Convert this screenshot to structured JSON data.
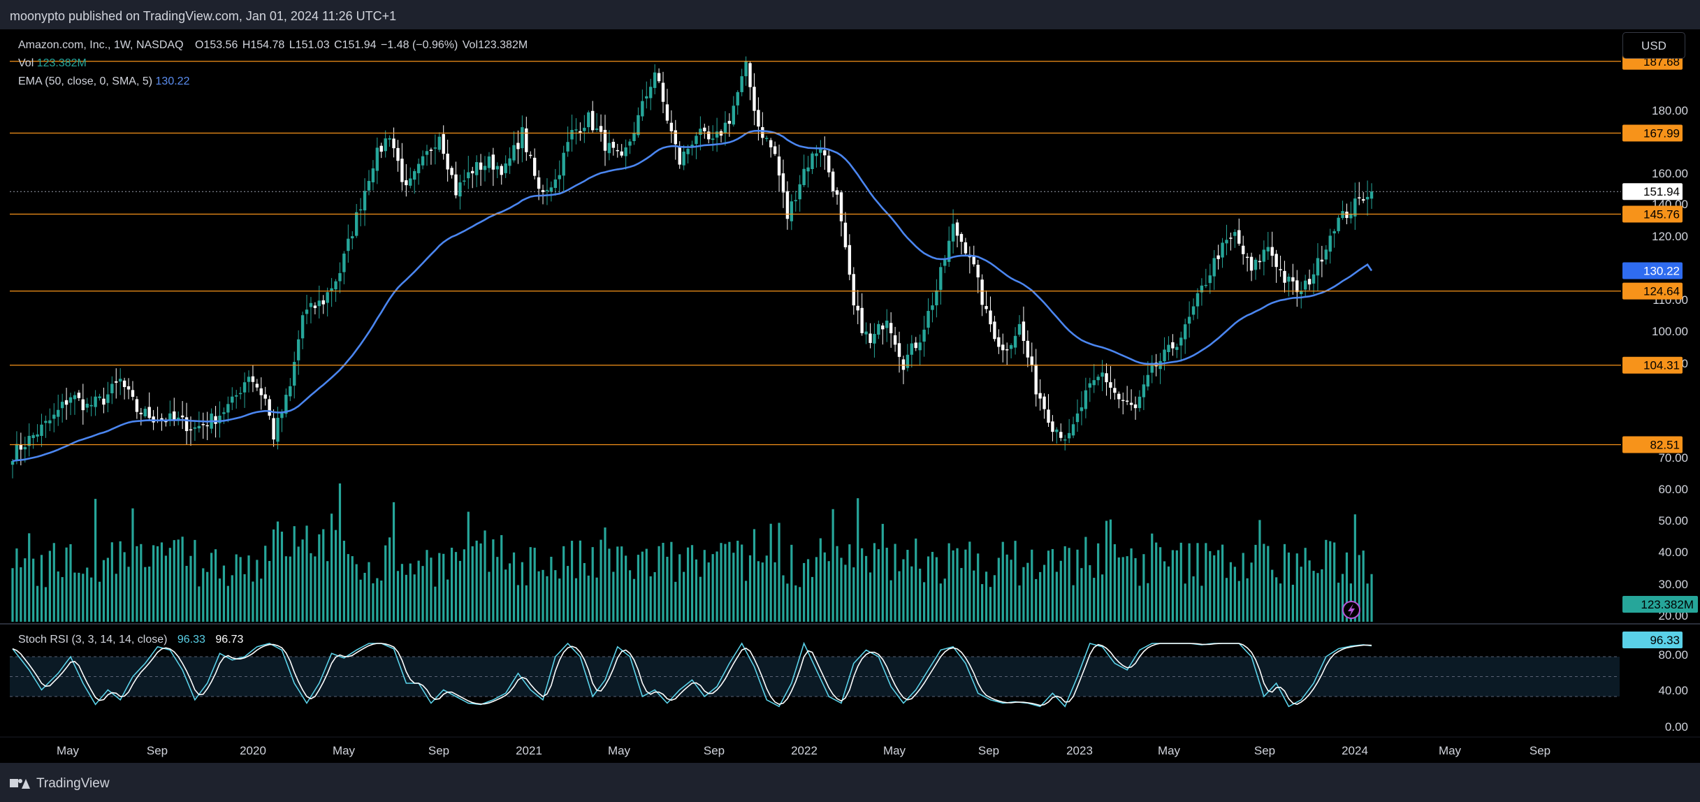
{
  "header": {
    "published": "moonypto published on TradingView.com, Jan 01, 2024 11:26 UTC+1"
  },
  "footer": {
    "brand": "TradingView"
  },
  "toolbar": {
    "currency": "USD"
  },
  "legend": {
    "symbol": "Amazon.com, Inc., 1W, NASDAQ",
    "open": "O153.56",
    "high": "H154.78",
    "low": "L151.03",
    "close": "C151.94",
    "change": "−1.48 (−0.96%)",
    "volume": "Vol123.382M",
    "vol_label": "Vol",
    "vol_value": "123.382M",
    "ema_label": "EMA (50, close, 0, SMA, 5)",
    "ema_value": "130.22"
  },
  "rsi_legend": {
    "label": "Stoch RSI (3, 3, 14, 14, close)",
    "k": "96.33",
    "d": "96.73"
  },
  "colors": {
    "up": "#26a69a",
    "down": "#ffffff",
    "ema": "#4b86f0",
    "level": "#f7931a",
    "volume": "#26a69a",
    "rsi_k": "#5ad1e8",
    "rsi_d": "#ffffff",
    "text": "#d1d4dc"
  },
  "chart_data": {
    "type": "candlestick",
    "symbol": "AMZN",
    "interval": "1W",
    "x_range": [
      "2019-03",
      "2024-10"
    ],
    "y_range": [
      78,
      193
    ],
    "price_ticks": [
      "180.00",
      "160.00",
      "140.00",
      "120.00",
      "110.00",
      "100.00",
      "90.00",
      "70.00",
      "60.00",
      "50.00",
      "40.00",
      "30.00",
      "20.00"
    ],
    "x_ticks": [
      "May",
      "Sep",
      "2020",
      "May",
      "Sep",
      "2021",
      "May",
      "Sep",
      "2022",
      "May",
      "Sep",
      "2023",
      "May",
      "Sep",
      "2024",
      "May",
      "Sep"
    ],
    "levels": [
      "187.68",
      "167.99",
      "145.76",
      "124.64",
      "104.31",
      "82.51"
    ],
    "last_price": "151.94",
    "ema_last": "130.22",
    "volume_last": "123.382M",
    "rsi_ticks": [
      "80.00",
      "40.00",
      "0.00"
    ],
    "rsi_k_last": "96.33",
    "rsi_overbought": 80,
    "rsi_oversold": 20,
    "price_anchors": [
      [
        0,
        80
      ],
      [
        5,
        85
      ],
      [
        10,
        90
      ],
      [
        14,
        96
      ],
      [
        18,
        93
      ],
      [
        22,
        95
      ],
      [
        26,
        100
      ],
      [
        30,
        92
      ],
      [
        34,
        90
      ],
      [
        40,
        89
      ],
      [
        44,
        87
      ],
      [
        49,
        90
      ],
      [
        53,
        94
      ],
      [
        57,
        102
      ],
      [
        61,
        95
      ],
      [
        63,
        85
      ],
      [
        67,
        98
      ],
      [
        70,
        118
      ],
      [
        75,
        122
      ],
      [
        79,
        130
      ],
      [
        83,
        145
      ],
      [
        87,
        160
      ],
      [
        91,
        168
      ],
      [
        95,
        152
      ],
      [
        99,
        160
      ],
      [
        103,
        168
      ],
      [
        107,
        152
      ],
      [
        111,
        158
      ],
      [
        115,
        160
      ],
      [
        119,
        158
      ],
      [
        123,
        168
      ],
      [
        127,
        152
      ],
      [
        131,
        155
      ],
      [
        135,
        168
      ],
      [
        139,
        172
      ],
      [
        143,
        165
      ],
      [
        147,
        160
      ],
      [
        151,
        172
      ],
      [
        155,
        185
      ],
      [
        158,
        172
      ],
      [
        161,
        160
      ],
      [
        165,
        168
      ],
      [
        169,
        165
      ],
      [
        173,
        172
      ],
      [
        177,
        186
      ],
      [
        180,
        170
      ],
      [
        184,
        162
      ],
      [
        187,
        145
      ],
      [
        191,
        158
      ],
      [
        195,
        165
      ],
      [
        199,
        150
      ],
      [
        203,
        120
      ],
      [
        207,
        110
      ],
      [
        211,
        118
      ],
      [
        215,
        105
      ],
      [
        219,
        112
      ],
      [
        223,
        125
      ],
      [
        227,
        142
      ],
      [
        231,
        135
      ],
      [
        235,
        118
      ],
      [
        239,
        108
      ],
      [
        243,
        115
      ],
      [
        247,
        98
      ],
      [
        251,
        88
      ],
      [
        255,
        84
      ],
      [
        259,
        96
      ],
      [
        263,
        102
      ],
      [
        267,
        95
      ],
      [
        271,
        92
      ],
      [
        275,
        103
      ],
      [
        279,
        108
      ],
      [
        283,
        114
      ],
      [
        287,
        125
      ],
      [
        291,
        135
      ],
      [
        295,
        140
      ],
      [
        299,
        130
      ],
      [
        303,
        137
      ],
      [
        307,
        128
      ],
      [
        311,
        124
      ],
      [
        315,
        132
      ],
      [
        319,
        143
      ],
      [
        323,
        147
      ],
      [
        327,
        152
      ],
      [
        328,
        151.94
      ]
    ],
    "rsi_anchors": [
      [
        0,
        92
      ],
      [
        4,
        60
      ],
      [
        7,
        30
      ],
      [
        11,
        55
      ],
      [
        14,
        80
      ],
      [
        17,
        40
      ],
      [
        20,
        8
      ],
      [
        23,
        30
      ],
      [
        26,
        15
      ],
      [
        29,
        50
      ],
      [
        32,
        70
      ],
      [
        35,
        95
      ],
      [
        38,
        90
      ],
      [
        41,
        60
      ],
      [
        44,
        15
      ],
      [
        47,
        40
      ],
      [
        50,
        85
      ],
      [
        53,
        75
      ],
      [
        56,
        80
      ],
      [
        59,
        95
      ],
      [
        62,
        100
      ],
      [
        65,
        90
      ],
      [
        68,
        40
      ],
      [
        71,
        10
      ],
      [
        74,
        40
      ],
      [
        77,
        85
      ],
      [
        80,
        78
      ],
      [
        83,
        90
      ],
      [
        86,
        100
      ],
      [
        89,
        100
      ],
      [
        92,
        92
      ],
      [
        95,
        40
      ],
      [
        98,
        40
      ],
      [
        101,
        10
      ],
      [
        104,
        30
      ],
      [
        107,
        20
      ],
      [
        110,
        10
      ],
      [
        113,
        8
      ],
      [
        116,
        15
      ],
      [
        119,
        25
      ],
      [
        122,
        55
      ],
      [
        125,
        30
      ],
      [
        128,
        15
      ],
      [
        131,
        80
      ],
      [
        134,
        100
      ],
      [
        137,
        80
      ],
      [
        140,
        20
      ],
      [
        143,
        45
      ],
      [
        146,
        95
      ],
      [
        149,
        80
      ],
      [
        152,
        20
      ],
      [
        155,
        30
      ],
      [
        158,
        10
      ],
      [
        161,
        30
      ],
      [
        164,
        45
      ],
      [
        167,
        20
      ],
      [
        170,
        35
      ],
      [
        173,
        70
      ],
      [
        176,
        100
      ],
      [
        179,
        65
      ],
      [
        182,
        15
      ],
      [
        185,
        5
      ],
      [
        188,
        40
      ],
      [
        191,
        100
      ],
      [
        194,
        60
      ],
      [
        197,
        20
      ],
      [
        200,
        10
      ],
      [
        203,
        70
      ],
      [
        206,
        90
      ],
      [
        209,
        80
      ],
      [
        212,
        35
      ],
      [
        215,
        10
      ],
      [
        218,
        30
      ],
      [
        221,
        60
      ],
      [
        224,
        90
      ],
      [
        227,
        95
      ],
      [
        230,
        70
      ],
      [
        233,
        25
      ],
      [
        236,
        15
      ],
      [
        239,
        10
      ],
      [
        242,
        12
      ],
      [
        245,
        10
      ],
      [
        248,
        5
      ],
      [
        251,
        25
      ],
      [
        254,
        5
      ],
      [
        257,
        50
      ],
      [
        260,
        100
      ],
      [
        263,
        95
      ],
      [
        266,
        70
      ],
      [
        269,
        60
      ],
      [
        272,
        90
      ],
      [
        275,
        100
      ],
      [
        278,
        100
      ],
      [
        281,
        100
      ],
      [
        284,
        100
      ],
      [
        287,
        98
      ],
      [
        290,
        100
      ],
      [
        293,
        100
      ],
      [
        296,
        100
      ],
      [
        299,
        80
      ],
      [
        302,
        20
      ],
      [
        305,
        40
      ],
      [
        308,
        5
      ],
      [
        311,
        15
      ],
      [
        314,
        40
      ],
      [
        317,
        80
      ],
      [
        320,
        92
      ],
      [
        323,
        96
      ],
      [
        326,
        98
      ],
      [
        328,
        96.33
      ]
    ]
  }
}
